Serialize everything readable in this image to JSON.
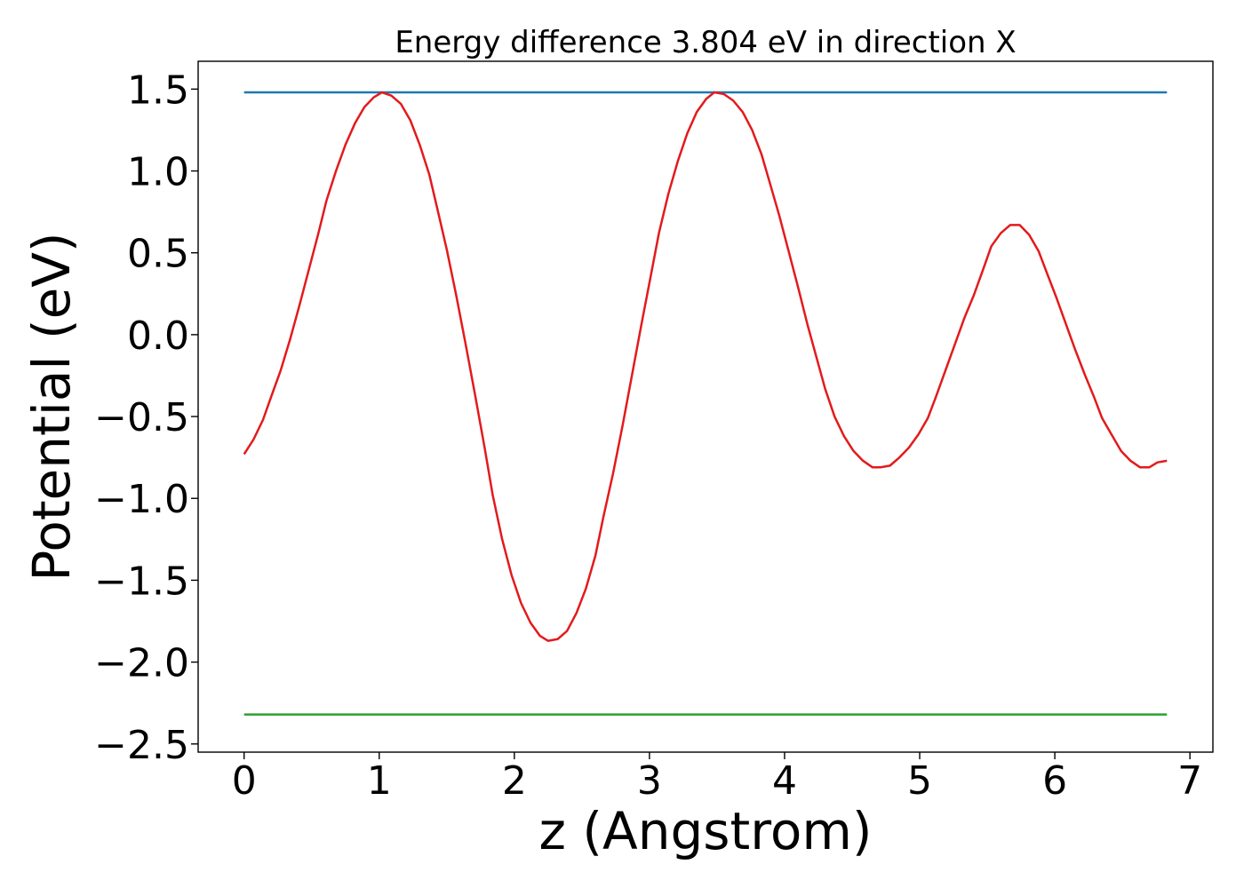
{
  "chart_data": {
    "type": "line",
    "title": "Energy difference 3.804 eV in direction X",
    "xlabel": "z (Angstrom)",
    "ylabel": "Potential (eV)",
    "xlim": [
      -0.34,
      7.17
    ],
    "ylim": [
      -2.55,
      1.67
    ],
    "xticks": [
      0,
      1,
      2,
      3,
      4,
      5,
      6,
      7
    ],
    "xtick_labels": [
      "0",
      "1",
      "2",
      "3",
      "4",
      "5",
      "6",
      "7"
    ],
    "yticks": [
      -2.5,
      -2.0,
      -1.5,
      -1.0,
      -0.5,
      0.0,
      0.5,
      1.0,
      1.5
    ],
    "ytick_labels": [
      "−2.5",
      "−2.0",
      "−1.5",
      "−1.0",
      "−0.5",
      "0.0",
      "0.5",
      "1.0",
      "1.5"
    ],
    "grid": false,
    "legend": "none",
    "series": [
      {
        "color": "#1f77b4",
        "x": [
          0,
          6.83
        ],
        "y": [
          1.48,
          1.48
        ]
      },
      {
        "color": "#2ca02c",
        "x": [
          0,
          6.83
        ],
        "y": [
          -2.32,
          -2.32
        ]
      },
      {
        "color": "#e31a1c",
        "x": [
          0.0,
          0.07,
          0.14,
          0.2,
          0.27,
          0.34,
          0.41,
          0.48,
          0.55,
          0.61,
          0.68,
          0.75,
          0.82,
          0.89,
          0.96,
          1.02,
          1.09,
          1.16,
          1.23,
          1.3,
          1.37,
          1.43,
          1.5,
          1.57,
          1.64,
          1.71,
          1.78,
          1.84,
          1.91,
          1.98,
          2.05,
          2.12,
          2.19,
          2.25,
          2.32,
          2.39,
          2.46,
          2.53,
          2.6,
          2.66,
          2.73,
          2.8,
          2.87,
          2.94,
          3.01,
          3.07,
          3.14,
          3.21,
          3.28,
          3.35,
          3.42,
          3.48,
          3.55,
          3.62,
          3.69,
          3.76,
          3.83,
          3.89,
          3.96,
          4.03,
          4.1,
          4.17,
          4.24,
          4.3,
          4.37,
          4.44,
          4.51,
          4.58,
          4.65,
          4.71,
          4.78,
          4.85,
          4.92,
          4.99,
          5.06,
          5.12,
          5.19,
          5.26,
          5.33,
          5.4,
          5.47,
          5.53,
          5.6,
          5.67,
          5.74,
          5.81,
          5.88,
          5.94,
          6.01,
          6.08,
          6.15,
          6.22,
          6.29,
          6.35,
          6.42,
          6.49,
          6.56,
          6.63,
          6.7,
          6.76,
          6.83
        ],
        "y": [
          -0.73,
          -0.64,
          -0.52,
          -0.38,
          -0.22,
          -0.03,
          0.18,
          0.4,
          0.62,
          0.82,
          1.0,
          1.16,
          1.29,
          1.39,
          1.45,
          1.48,
          1.46,
          1.41,
          1.31,
          1.16,
          0.98,
          0.77,
          0.52,
          0.24,
          -0.06,
          -0.37,
          -0.69,
          -0.98,
          -1.25,
          -1.47,
          -1.64,
          -1.76,
          -1.84,
          -1.87,
          -1.86,
          -1.81,
          -1.7,
          -1.55,
          -1.35,
          -1.11,
          -0.85,
          -0.56,
          -0.25,
          0.06,
          0.36,
          0.62,
          0.86,
          1.06,
          1.23,
          1.36,
          1.44,
          1.48,
          1.47,
          1.43,
          1.36,
          1.25,
          1.1,
          0.93,
          0.73,
          0.51,
          0.29,
          0.06,
          -0.15,
          -0.33,
          -0.5,
          -0.62,
          -0.71,
          -0.77,
          -0.81,
          -0.81,
          -0.8,
          -0.75,
          -0.69,
          -0.61,
          -0.51,
          -0.38,
          -0.22,
          -0.06,
          0.1,
          0.24,
          0.4,
          0.54,
          0.62,
          0.67,
          0.67,
          0.61,
          0.51,
          0.38,
          0.23,
          0.07,
          -0.09,
          -0.24,
          -0.38,
          -0.51,
          -0.61,
          -0.71,
          -0.77,
          -0.81,
          -0.81,
          -0.78,
          -0.77
        ]
      }
    ]
  }
}
